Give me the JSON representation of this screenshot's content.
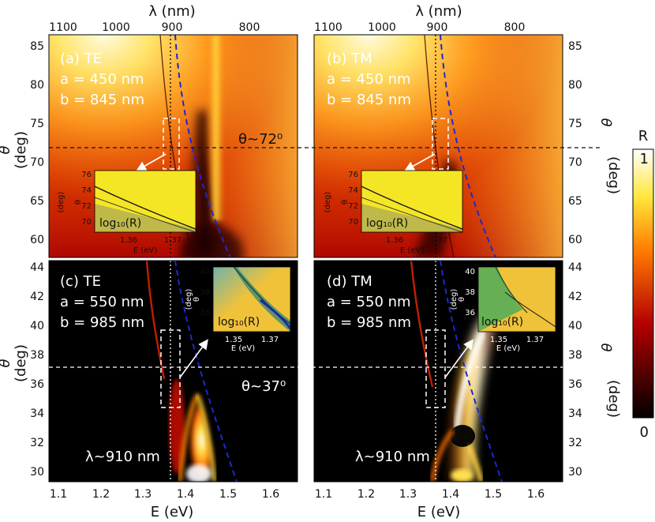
{
  "figure": {
    "colorbar_label": "R",
    "colorbar_ticks": [
      "1",
      "0"
    ],
    "top_axis_label": "λ (nm)",
    "top_ticks": [
      "1100",
      "1000",
      "900",
      "800"
    ],
    "bottom_axis_label": "E (eV)",
    "bottom_ticks": [
      "1.1",
      "1.2",
      "1.3",
      "1.4",
      "1.5",
      "1.6"
    ],
    "theta_label": "θ",
    "theta_unit": "(deg)"
  },
  "panels": [
    {
      "id": "a",
      "labels": [
        "(a) TE",
        "a = 450 nm",
        "b = 845 nm"
      ],
      "yticks": [
        "85",
        "80",
        "75",
        "70",
        "65",
        "60"
      ],
      "angle_note": "θ~72⁰",
      "inset": {
        "yticks": [
          "76",
          "74",
          "72",
          "70"
        ],
        "xticks": [
          "1.36",
          "1.37"
        ],
        "theta": "θ",
        "unit": "(deg)",
        "xlabel": "E (eV)",
        "zlabel": "log₁₀(R)"
      }
    },
    {
      "id": "b",
      "labels": [
        "(b) TM",
        "a = 450 nm",
        "b = 845 nm"
      ],
      "yticks": [
        "85",
        "80",
        "75",
        "70",
        "65",
        "60"
      ],
      "inset": {
        "yticks": [
          "76",
          "74",
          "72",
          "70"
        ],
        "xticks": [
          "1.36",
          "1.37"
        ],
        "theta": "θ",
        "unit": "(deg)",
        "xlabel": "E (eV)",
        "zlabel": "log₁₀(R)"
      }
    },
    {
      "id": "c",
      "labels": [
        "(c) TE",
        "a = 550 nm",
        "b = 985 nm"
      ],
      "yticks": [
        "44",
        "42",
        "40",
        "38",
        "36",
        "34",
        "32",
        "30"
      ],
      "angle_note": "θ~37⁰",
      "wavelength_note": "λ~910 nm",
      "inset": {
        "yticks": [
          "40",
          "38",
          "36"
        ],
        "xticks": [
          "1.35",
          "1.37"
        ],
        "theta": "θ",
        "unit": "(deg)",
        "xlabel": "E (eV)",
        "zlabel": "log₁₀(R)"
      }
    },
    {
      "id": "d",
      "labels": [
        "(d) TM",
        "a = 550 nm",
        "b = 985 nm"
      ],
      "yticks": [
        "44",
        "42",
        "40",
        "38",
        "36",
        "34",
        "32",
        "30"
      ],
      "wavelength_note": "λ~910 nm",
      "inset": {
        "yticks": [
          "40",
          "38",
          "36"
        ],
        "xticks": [
          "1.35",
          "1.37"
        ],
        "theta": "θ",
        "unit": "(deg)",
        "xlabel": "E (eV)",
        "zlabel": "log₁₀(R)"
      }
    }
  ],
  "chart_data": {
    "type": "heatmap",
    "quantity": "R",
    "colormap": "hot",
    "zlim": [
      0,
      1
    ],
    "xlim": [
      1.07,
      1.66
    ],
    "xlabel": "E (eV)",
    "x2label": "λ (nm)",
    "x2ticks": [
      1100,
      1000,
      900,
      800
    ],
    "ylabel": "θ (deg)",
    "panels": [
      {
        "id": "a",
        "polarization": "TE",
        "a_nm": 450,
        "b_nm": 845,
        "ylim": [
          58,
          87
        ],
        "theta_marker_deg": 72,
        "energy_marker_eV": 1.37
      },
      {
        "id": "b",
        "polarization": "TM",
        "a_nm": 450,
        "b_nm": 845,
        "ylim": [
          58,
          87
        ],
        "theta_marker_deg": 72,
        "energy_marker_eV": 1.37
      },
      {
        "id": "c",
        "polarization": "TE",
        "a_nm": 550,
        "b_nm": 985,
        "ylim": [
          29.7,
          44.7
        ],
        "theta_marker_deg": 37,
        "wavelength_marker_nm": 910
      },
      {
        "id": "d",
        "polarization": "TM",
        "a_nm": 550,
        "b_nm": 985,
        "ylim": [
          29.7,
          44.7
        ],
        "theta_marker_deg": 37,
        "wavelength_marker_nm": 910
      }
    ],
    "inset_ranges": {
      "top": {
        "xlim": [
          1.35,
          1.375
        ],
        "ylim": [
          69,
          76.5
        ]
      },
      "bottom": {
        "xlim": [
          1.34,
          1.38
        ],
        "ylim": [
          35,
          40.5
        ]
      }
    }
  },
  "colors": {
    "grad_dark": "#000000",
    "grad_red": "#b40000",
    "grad_orange": "#ff7a00",
    "grad_yellow": "#ffe63a",
    "grad_white": "#ffffff",
    "dashed_blue": "#1a2ad0",
    "inset_yellow": "#f4e625",
    "inset_top_stripe": "#9aa53a",
    "inset_green": "#5fae55",
    "inset_bottom_bg": "#f0c23a"
  }
}
